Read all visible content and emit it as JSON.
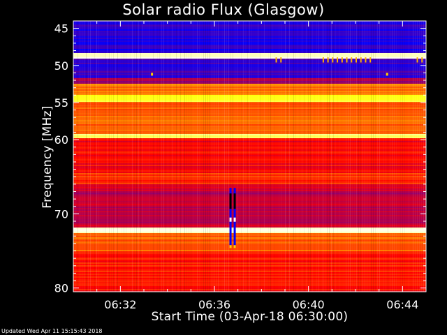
{
  "chart_data": {
    "type": "heatmap",
    "title": "Solar radio Flux (Glasgow)",
    "xlabel": "Start Time (03-Apr-18 06:30:00)",
    "ylabel": "Frequency [MHz]",
    "x_ticks": [
      "06:32",
      "06:36",
      "06:40",
      "06:44"
    ],
    "x_tick_minutes": [
      2,
      6,
      10,
      14
    ],
    "x_range_minutes": [
      0,
      15
    ],
    "y_ticks": [
      45,
      50,
      55,
      60,
      70,
      80
    ],
    "y_range_mhz": [
      44,
      80.5
    ],
    "colormap": [
      "#000000",
      "#0000ff",
      "#ff0000",
      "#ffff00",
      "#ffffff"
    ],
    "intensity_bands": [
      {
        "from_mhz": 44.0,
        "to_mhz": 48.4,
        "level": 0.28
      },
      {
        "from_mhz": 48.4,
        "to_mhz": 49.0,
        "level": 0.95
      },
      {
        "from_mhz": 49.0,
        "to_mhz": 51.8,
        "level": 0.3
      },
      {
        "from_mhz": 51.8,
        "to_mhz": 52.4,
        "level": 0.4
      },
      {
        "from_mhz": 52.4,
        "to_mhz": 54.0,
        "level": 0.62
      },
      {
        "from_mhz": 54.0,
        "to_mhz": 55.0,
        "level": 0.78
      },
      {
        "from_mhz": 55.0,
        "to_mhz": 59.2,
        "level": 0.6
      },
      {
        "from_mhz": 59.2,
        "to_mhz": 59.8,
        "level": 0.85
      },
      {
        "from_mhz": 59.8,
        "to_mhz": 64.5,
        "level": 0.5
      },
      {
        "from_mhz": 64.5,
        "to_mhz": 66.0,
        "level": 0.55
      },
      {
        "from_mhz": 66.0,
        "to_mhz": 71.8,
        "level": 0.44
      },
      {
        "from_mhz": 71.8,
        "to_mhz": 72.6,
        "level": 0.95
      },
      {
        "from_mhz": 72.6,
        "to_mhz": 75.0,
        "level": 0.6
      },
      {
        "from_mhz": 75.0,
        "to_mhz": 80.5,
        "level": 0.52
      }
    ],
    "burst": {
      "minute": 6.7,
      "from_mhz": 66.5,
      "to_mhz": 74.5
    }
  },
  "footer": "Updated Wed Apr 11 15:15:43 2018"
}
